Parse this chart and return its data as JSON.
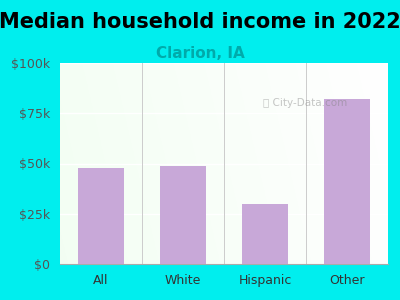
{
  "categories": [
    "All",
    "White",
    "Hispanic",
    "Other"
  ],
  "values": [
    48000,
    49000,
    30000,
    82000
  ],
  "bar_color": "#C8A8D8",
  "title": "Median household income in 2022",
  "subtitle": "Clarion, IA",
  "subtitle_color": "#00AAAA",
  "title_color": "#000000",
  "background_outer": "#00EEEE",
  "ylim": [
    0,
    100000
  ],
  "yticks": [
    0,
    25000,
    50000,
    75000,
    100000
  ],
  "ytick_labels": [
    "$0",
    "$25k",
    "$50k",
    "$75k",
    "$100k"
  ],
  "watermark": "City-Data.com",
  "title_fontsize": 15,
  "subtitle_fontsize": 11
}
